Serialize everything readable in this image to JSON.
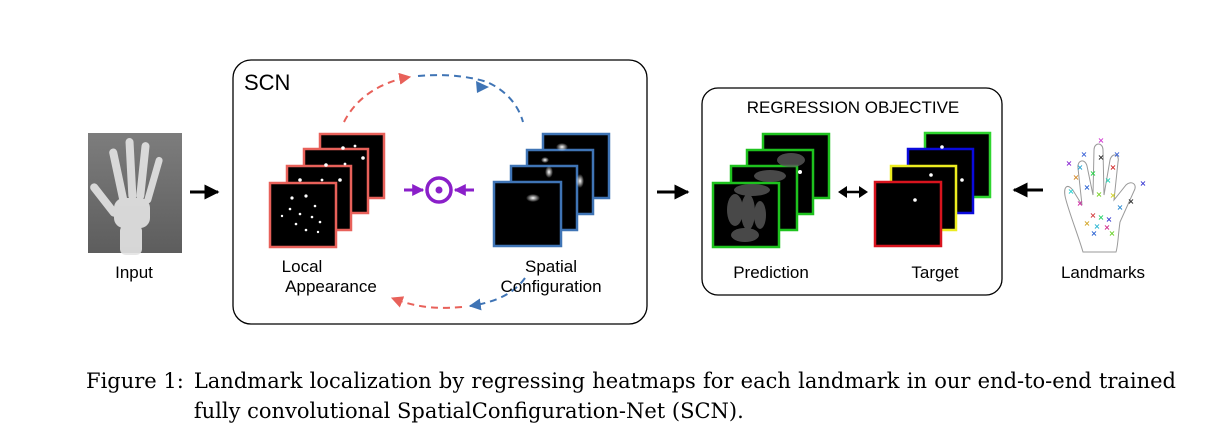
{
  "figure": {
    "input_label": "Input",
    "scn_title": "SCN",
    "local_appearance_label_line1": "Local",
    "local_appearance_label_line2": "Appearance",
    "spatial_configuration_label_line1": "Spatial",
    "spatial_configuration_label_line2": "Configuration",
    "regression_title": "REGRESSION OBJECTIVE",
    "prediction_label": "Prediction",
    "target_label": "Target",
    "landmarks_label": "Landmarks",
    "colors": {
      "local_appearance_frame": "#e8615a",
      "spatial_configuration_frame": "#3f74b5",
      "prediction_frame": "#1ec21e",
      "operator": "#8a1fc9",
      "target_frames": [
        "#2fd52f",
        "#0a0adc",
        "#ecec20",
        "#d8141e"
      ]
    }
  },
  "caption": {
    "label": "Figure 1:",
    "text": "Landmark localization by regressing heatmaps for each landmark in our end-to-end trained fully convolutional SpatialConfiguration-Net (SCN)."
  }
}
